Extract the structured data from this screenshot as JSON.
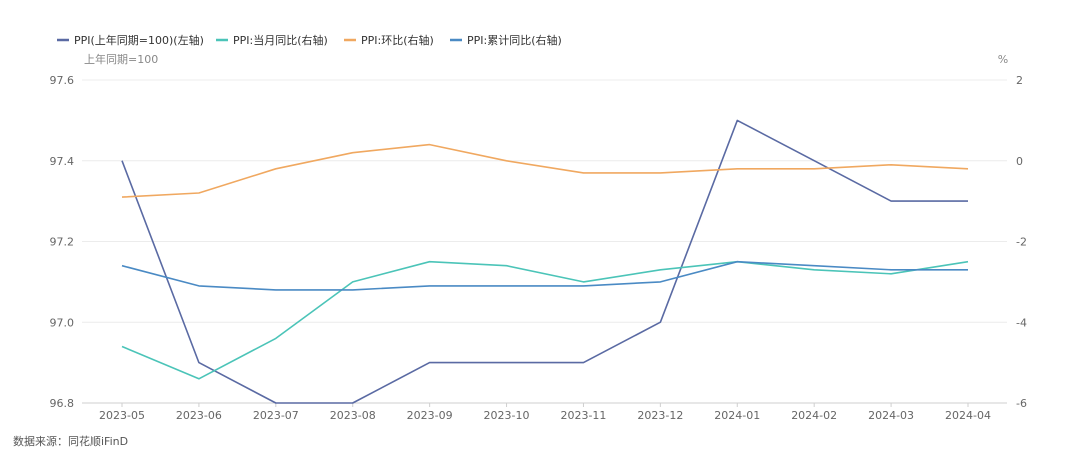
{
  "chart_data": {
    "type": "line",
    "categories": [
      "2023-05",
      "2023-06",
      "2023-07",
      "2023-08",
      "2023-09",
      "2023-10",
      "2023-11",
      "2023-12",
      "2024-01",
      "2024-02",
      "2024-03",
      "2024-04"
    ],
    "left_axis": {
      "unit": "上年同期=100",
      "ticks": [
        "97.6",
        "97.4",
        "97.2",
        "97.0",
        "96.8"
      ],
      "range": [
        96.8,
        97.6
      ]
    },
    "right_axis": {
      "unit": "%",
      "ticks": [
        "2",
        "0",
        "-2",
        "-4",
        "-6"
      ],
      "range": [
        -6,
        2
      ]
    },
    "legend_position": "top-left",
    "series": [
      {
        "name": "PPI(上年同期=100)(左轴)",
        "axis": "left",
        "color": "#5a6aa3",
        "values": [
          97.4,
          96.9,
          96.8,
          96.8,
          96.9,
          96.9,
          96.9,
          97.0,
          97.5,
          97.4,
          97.3,
          97.3
        ]
      },
      {
        "name": "PPI:当月同比(右轴)",
        "axis": "right",
        "color": "#4bc4b8",
        "values": [
          -4.6,
          -5.4,
          -4.4,
          -3.0,
          -2.5,
          -2.6,
          -3.0,
          -2.7,
          -2.5,
          -2.7,
          -2.8,
          -2.5
        ]
      },
      {
        "name": "PPI:环比(右轴)",
        "axis": "right",
        "color": "#f0a860",
        "values": [
          -0.9,
          -0.8,
          -0.2,
          0.2,
          0.4,
          0.0,
          -0.3,
          -0.3,
          -0.2,
          -0.2,
          -0.1,
          -0.2
        ]
      },
      {
        "name": "PPI:累计同比(右轴)",
        "axis": "right",
        "color": "#4a8ac4",
        "values": [
          -2.6,
          -3.1,
          -3.2,
          -3.2,
          -3.1,
          -3.1,
          -3.1,
          -3.0,
          -2.5,
          -2.6,
          -2.7,
          -2.7
        ]
      }
    ]
  },
  "footer": {
    "source": "数据来源：同花顺iFinD"
  }
}
